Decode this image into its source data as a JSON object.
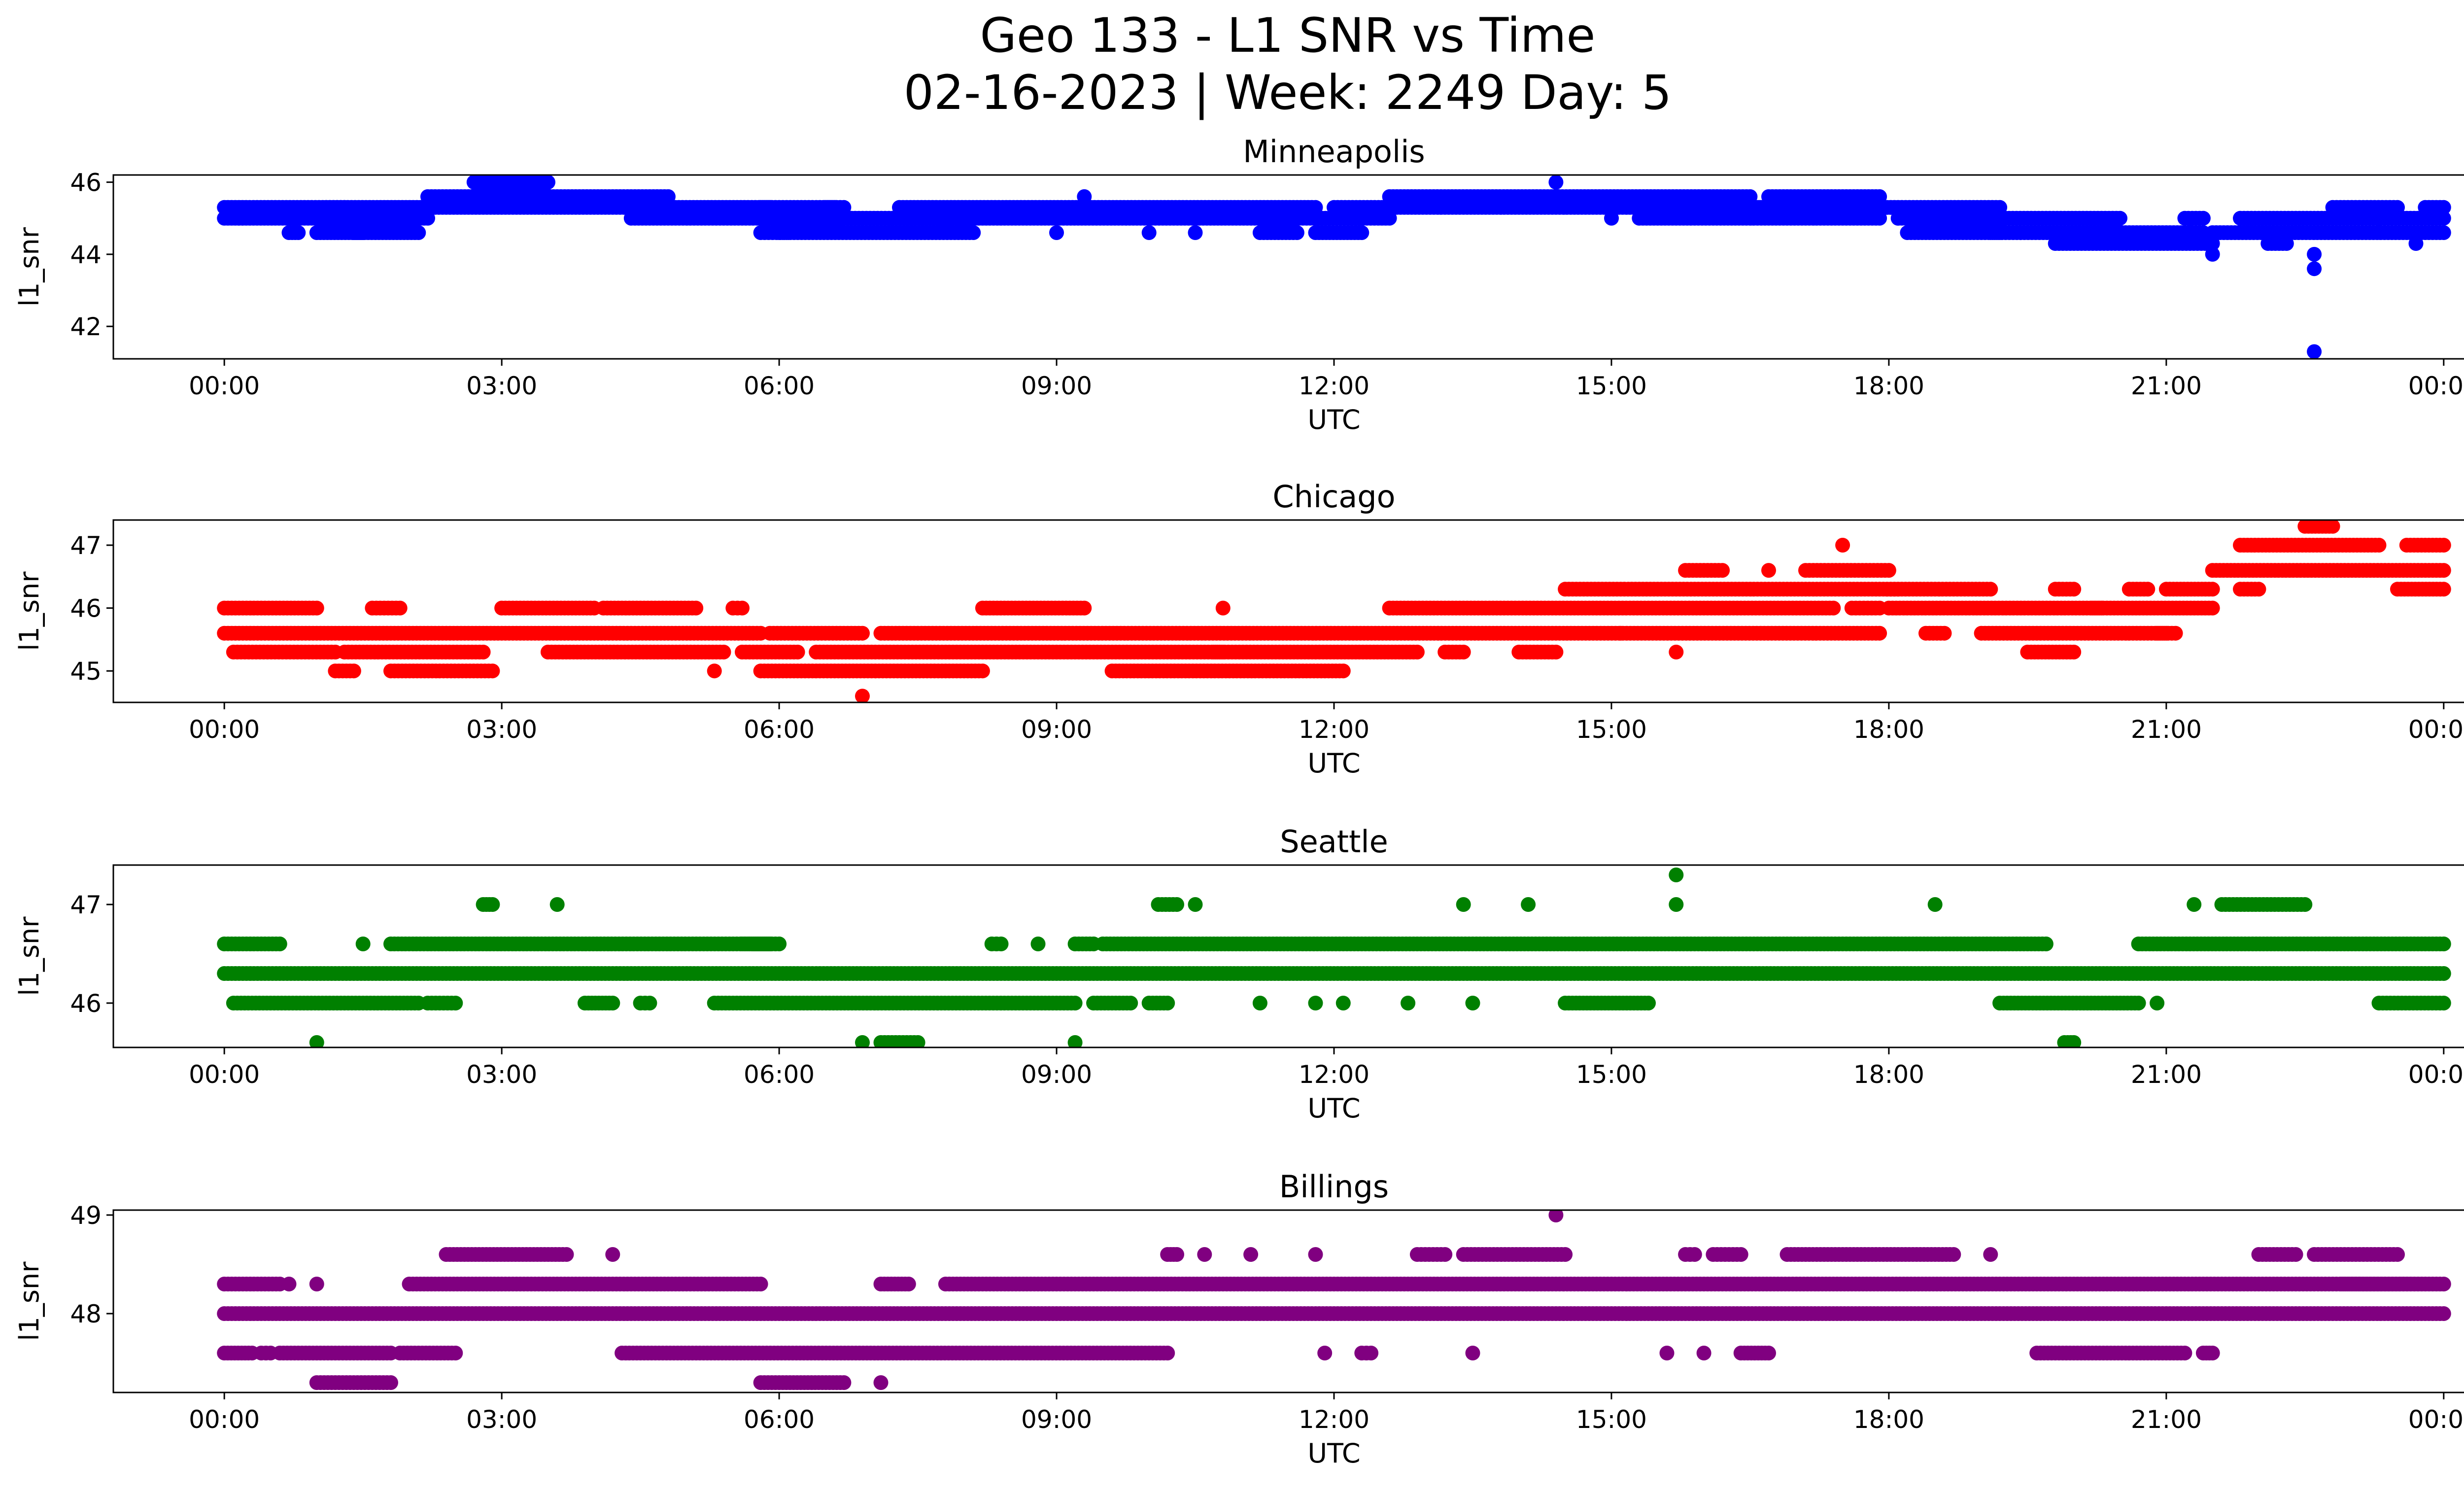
{
  "figure": {
    "title_line1": "Geo 133 - L1 SNR vs Time",
    "title_line2": "02-16-2023 | Week: 2249 Day: 5"
  },
  "chart_data": [
    {
      "type": "scatter",
      "title": "Minneapolis",
      "xlabel": "UTC",
      "ylabel": "l1_snr",
      "color": "#0000ff",
      "x_ticks": [
        "00:00",
        "03:00",
        "06:00",
        "09:00",
        "12:00",
        "15:00",
        "18:00",
        "21:00",
        "00:00"
      ],
      "y_ticks": [
        42,
        44,
        46
      ],
      "xlim_hours": [
        -1.2,
        25.2
      ],
      "ylim": [
        41.1,
        46.2
      ],
      "levels": [
        45.3,
        45.0,
        44.6,
        45.6,
        46.0,
        44.3,
        44.0,
        43.6,
        41.3
      ],
      "segments": [
        [
          45.3,
          0.0,
          1.3
        ],
        [
          45.0,
          0.0,
          1.3
        ],
        [
          44.6,
          0.7,
          0.8
        ],
        [
          44.6,
          1.0,
          1.5
        ],
        [
          45.3,
          1.1,
          2.2
        ],
        [
          45.0,
          1.1,
          2.2
        ],
        [
          44.6,
          1.4,
          2.1
        ],
        [
          45.6,
          2.2,
          4.4
        ],
        [
          45.3,
          2.2,
          4.6
        ],
        [
          46.0,
          2.7,
          3.5
        ],
        [
          45.0,
          4.4,
          4.6
        ],
        [
          45.6,
          4.4,
          4.8
        ],
        [
          45.3,
          4.6,
          5.9
        ],
        [
          45.0,
          4.6,
          5.8
        ],
        [
          45.3,
          5.8,
          6.6
        ],
        [
          45.0,
          5.8,
          6.7
        ],
        [
          44.6,
          5.8,
          6.1
        ],
        [
          44.6,
          6.0,
          8.1
        ],
        [
          45.0,
          6.7,
          8.2
        ],
        [
          45.3,
          6.5,
          6.7
        ],
        [
          45.3,
          7.3,
          11.8
        ],
        [
          45.0,
          8.0,
          11.5
        ],
        [
          44.6,
          9.0,
          9.0
        ],
        [
          45.6,
          9.3,
          9.3
        ],
        [
          44.6,
          10.0,
          10.0
        ],
        [
          44.6,
          10.5,
          10.5
        ],
        [
          44.6,
          11.2,
          11.6
        ],
        [
          45.0,
          11.5,
          12.6
        ],
        [
          44.6,
          11.8,
          12.3
        ],
        [
          45.3,
          12.0,
          16.6
        ],
        [
          45.6,
          12.6,
          16.5
        ],
        [
          46.0,
          14.4,
          14.4
        ],
        [
          45.0,
          15.0,
          15.0
        ],
        [
          45.0,
          15.3,
          17.9
        ],
        [
          45.3,
          16.5,
          18.1
        ],
        [
          45.6,
          16.7,
          17.9
        ],
        [
          45.3,
          18.1,
          19.2
        ],
        [
          45.0,
          18.1,
          19.7
        ],
        [
          44.6,
          18.2,
          19.2
        ],
        [
          44.6,
          19.1,
          20.4
        ],
        [
          45.0,
          19.7,
          20.5
        ],
        [
          44.3,
          19.8,
          21.5
        ],
        [
          44.6,
          20.4,
          21.4
        ],
        [
          45.0,
          21.2,
          21.4
        ],
        [
          44.0,
          21.5,
          21.5
        ],
        [
          44.6,
          21.5,
          23.2
        ],
        [
          45.0,
          21.8,
          23.4
        ],
        [
          44.3,
          22.1,
          22.3
        ],
        [
          44.0,
          22.6,
          22.6
        ],
        [
          43.6,
          22.6,
          22.6
        ],
        [
          41.3,
          22.6,
          22.6
        ],
        [
          45.3,
          22.8,
          23.5
        ],
        [
          45.0,
          23.4,
          24.0
        ],
        [
          44.6,
          23.2,
          24.0
        ],
        [
          45.3,
          23.8,
          24.0
        ],
        [
          44.3,
          23.7,
          23.7
        ]
      ]
    },
    {
      "type": "scatter",
      "title": "Chicago",
      "xlabel": "UTC",
      "ylabel": "l1_snr",
      "color": "#ff0000",
      "x_ticks": [
        "00:00",
        "03:00",
        "06:00",
        "09:00",
        "12:00",
        "15:00",
        "18:00",
        "21:00",
        "00:00"
      ],
      "y_ticks": [
        45,
        46,
        47
      ],
      "xlim_hours": [
        -1.2,
        25.2
      ],
      "ylim": [
        44.5,
        47.4
      ],
      "levels": [
        46.0,
        45.6,
        45.3,
        45.0,
        44.6,
        46.3,
        46.6,
        47.0,
        47.3
      ],
      "segments": [
        [
          46.0,
          0.0,
          1.0
        ],
        [
          45.6,
          0.0,
          5.8
        ],
        [
          45.3,
          0.1,
          1.2
        ],
        [
          45.0,
          1.2,
          1.4
        ],
        [
          46.0,
          1.6,
          1.9
        ],
        [
          45.3,
          1.3,
          2.8
        ],
        [
          45.0,
          1.8,
          2.9
        ],
        [
          46.0,
          3.0,
          4.0
        ],
        [
          45.3,
          3.5,
          5.4
        ],
        [
          46.0,
          4.1,
          5.1
        ],
        [
          46.0,
          5.5,
          5.6
        ],
        [
          45.0,
          5.3,
          5.3
        ],
        [
          45.3,
          5.6,
          6.2
        ],
        [
          45.0,
          5.8,
          7.0
        ],
        [
          45.6,
          5.9,
          6.9
        ],
        [
          44.6,
          6.9,
          6.9
        ],
        [
          45.3,
          6.4,
          10.8
        ],
        [
          45.6,
          7.1,
          14.4
        ],
        [
          45.0,
          7.0,
          8.2
        ],
        [
          46.0,
          8.2,
          9.3
        ],
        [
          45.3,
          10.7,
          12.0
        ],
        [
          45.0,
          9.6,
          12.1
        ],
        [
          46.0,
          10.8,
          10.8
        ],
        [
          45.3,
          12.0,
          12.9
        ],
        [
          46.0,
          12.6,
          14.4
        ],
        [
          45.3,
          13.2,
          13.4
        ],
        [
          45.6,
          14.4,
          17.9
        ],
        [
          46.0,
          14.4,
          17.4
        ],
        [
          46.3,
          14.5,
          19.1
        ],
        [
          45.3,
          14.0,
          14.4
        ],
        [
          45.6,
          15.1,
          15.1
        ],
        [
          45.3,
          15.7,
          15.7
        ],
        [
          46.6,
          15.8,
          16.2
        ],
        [
          46.6,
          16.7,
          16.7
        ],
        [
          46.6,
          17.1,
          18.0
        ],
        [
          47.0,
          17.5,
          17.5
        ],
        [
          46.0,
          17.6,
          17.9
        ],
        [
          46.0,
          18.0,
          20.3
        ],
        [
          45.6,
          18.4,
          18.6
        ],
        [
          45.6,
          19.0,
          21.0
        ],
        [
          45.3,
          19.5,
          20.0
        ],
        [
          46.3,
          19.8,
          20.0
        ],
        [
          46.0,
          20.2,
          21.5
        ],
        [
          46.3,
          20.6,
          20.8
        ],
        [
          45.6,
          20.9,
          21.1
        ],
        [
          46.3,
          21.0,
          21.5
        ],
        [
          46.6,
          21.5,
          24.0
        ],
        [
          47.0,
          21.8,
          23.3
        ],
        [
          46.3,
          21.8,
          22.0
        ],
        [
          47.3,
          22.5,
          22.8
        ],
        [
          46.3,
          23.5,
          24.0
        ],
        [
          47.0,
          23.6,
          24.0
        ]
      ]
    },
    {
      "type": "scatter",
      "title": "Seattle",
      "xlabel": "UTC",
      "ylabel": "l1_snr",
      "color": "#008000",
      "x_ticks": [
        "00:00",
        "03:00",
        "06:00",
        "09:00",
        "12:00",
        "15:00",
        "18:00",
        "21:00",
        "00:00"
      ],
      "y_ticks": [
        46,
        47
      ],
      "xlim_hours": [
        -1.2,
        25.2
      ],
      "ylim": [
        45.55,
        47.4
      ],
      "levels": [
        46.6,
        46.3,
        46.0,
        45.6,
        47.0,
        47.3
      ],
      "segments": [
        [
          46.6,
          0.0,
          0.6
        ],
        [
          46.3,
          0.0,
          24.0
        ],
        [
          46.0,
          0.1,
          2.1
        ],
        [
          45.6,
          1.0,
          1.0
        ],
        [
          46.6,
          1.5,
          1.5
        ],
        [
          46.6,
          1.8,
          5.9
        ],
        [
          46.0,
          2.2,
          2.5
        ],
        [
          47.0,
          2.8,
          2.9
        ],
        [
          47.0,
          3.6,
          3.6
        ],
        [
          46.0,
          3.9,
          4.2
        ],
        [
          46.0,
          4.5,
          4.6
        ],
        [
          46.0,
          5.3,
          9.2
        ],
        [
          46.6,
          5.6,
          6.0
        ],
        [
          45.6,
          6.9,
          6.9
        ],
        [
          45.6,
          7.1,
          7.5
        ],
        [
          46.6,
          8.3,
          8.4
        ],
        [
          46.6,
          8.8,
          8.8
        ],
        [
          45.6,
          9.2,
          9.2
        ],
        [
          46.6,
          9.2,
          9.4
        ],
        [
          46.0,
          9.4,
          9.8
        ],
        [
          46.6,
          9.5,
          19.7
        ],
        [
          47.0,
          10.1,
          10.3
        ],
        [
          47.0,
          10.5,
          10.5
        ],
        [
          46.0,
          10.0,
          10.2
        ],
        [
          46.0,
          11.2,
          11.2
        ],
        [
          46.0,
          11.8,
          11.8
        ],
        [
          46.0,
          12.1,
          12.1
        ],
        [
          46.0,
          12.8,
          12.8
        ],
        [
          47.0,
          13.4,
          13.4
        ],
        [
          46.0,
          13.5,
          13.5
        ],
        [
          47.0,
          14.1,
          14.1
        ],
        [
          46.0,
          14.5,
          15.4
        ],
        [
          47.3,
          15.7,
          15.7
        ],
        [
          47.0,
          15.7,
          15.7
        ],
        [
          47.0,
          18.5,
          18.5
        ],
        [
          46.0,
          19.2,
          20.7
        ],
        [
          45.6,
          19.9,
          20.0
        ],
        [
          46.0,
          20.9,
          20.9
        ],
        [
          46.6,
          20.7,
          24.0
        ],
        [
          47.0,
          21.3,
          21.3
        ],
        [
          47.0,
          21.6,
          22.5
        ],
        [
          46.0,
          23.3,
          24.0
        ]
      ]
    },
    {
      "type": "scatter",
      "title": "Billings",
      "xlabel": "UTC",
      "ylabel": "l1_snr",
      "color": "#800080",
      "x_ticks": [
        "00:00",
        "03:00",
        "06:00",
        "09:00",
        "12:00",
        "15:00",
        "18:00",
        "21:00",
        "00:00"
      ],
      "y_ticks": [
        48,
        49
      ],
      "xlim_hours": [
        -1.2,
        25.2
      ],
      "ylim": [
        47.2,
        49.05
      ],
      "levels": [
        48.3,
        48.0,
        47.6,
        47.3,
        48.6,
        49.0
      ],
      "segments": [
        [
          48.3,
          0.0,
          0.6
        ],
        [
          48.0,
          0.0,
          24.0
        ],
        [
          47.6,
          0.0,
          0.3
        ],
        [
          47.6,
          0.4,
          0.5
        ],
        [
          48.3,
          0.7,
          0.7
        ],
        [
          47.6,
          0.6,
          1.8
        ],
        [
          48.3,
          1.0,
          1.0
        ],
        [
          47.3,
          1.0,
          1.8
        ],
        [
          47.6,
          1.9,
          2.5
        ],
        [
          48.3,
          2.0,
          5.8
        ],
        [
          48.6,
          2.4,
          3.7
        ],
        [
          48.6,
          4.2,
          4.2
        ],
        [
          47.6,
          4.3,
          10.2
        ],
        [
          47.3,
          5.8,
          6.0
        ],
        [
          47.3,
          6.0,
          6.7
        ],
        [
          47.3,
          7.1,
          7.1
        ],
        [
          48.3,
          7.1,
          7.4
        ],
        [
          48.3,
          7.8,
          24.0
        ],
        [
          48.6,
          10.2,
          10.3
        ],
        [
          48.6,
          10.6,
          10.6
        ],
        [
          48.6,
          11.1,
          11.1
        ],
        [
          48.6,
          11.8,
          11.8
        ],
        [
          47.6,
          11.9,
          11.9
        ],
        [
          47.6,
          12.3,
          12.4
        ],
        [
          48.6,
          12.9,
          13.2
        ],
        [
          48.6,
          13.4,
          14.5
        ],
        [
          47.6,
          13.5,
          13.5
        ],
        [
          49.0,
          14.4,
          14.4
        ],
        [
          48.6,
          15.8,
          15.9
        ],
        [
          48.6,
          16.1,
          16.4
        ],
        [
          47.6,
          15.6,
          15.6
        ],
        [
          47.6,
          16.0,
          16.0
        ],
        [
          47.6,
          16.4,
          16.7
        ],
        [
          48.6,
          16.9,
          18.7
        ],
        [
          48.6,
          19.1,
          19.1
        ],
        [
          47.6,
          19.6,
          21.2
        ],
        [
          48.6,
          22.0,
          22.4
        ],
        [
          48.6,
          22.6,
          23.5
        ],
        [
          48.3,
          22.9,
          24.0
        ],
        [
          47.6,
          21.4,
          21.5
        ]
      ]
    }
  ]
}
